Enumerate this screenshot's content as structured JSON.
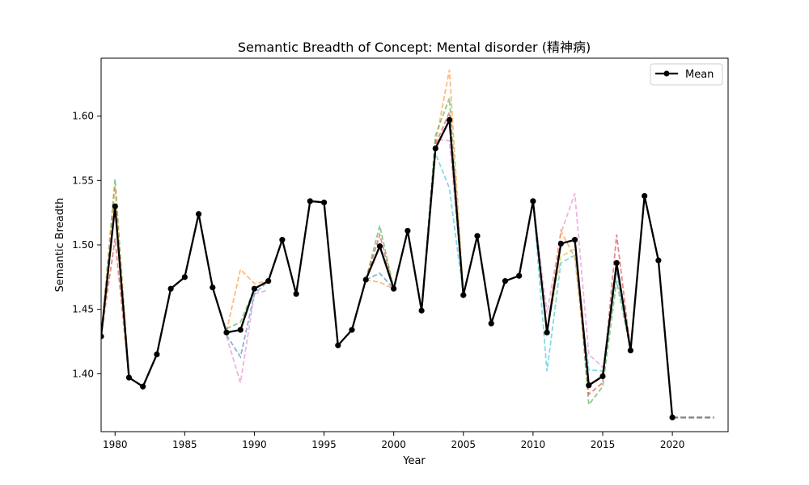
{
  "chart_data": {
    "type": "line",
    "title": "Semantic Breadth of Concept: Mental disorder (精神病)",
    "xlabel": "Year",
    "ylabel": "Semantic Breadth",
    "xlim": [
      1979,
      2024
    ],
    "ylim": [
      1.355,
      1.645
    ],
    "xticks": [
      1980,
      1985,
      1990,
      1995,
      2000,
      2005,
      2010,
      2015,
      2020
    ],
    "yticks": [
      1.4,
      1.45,
      1.5,
      1.55,
      1.6
    ],
    "legend": {
      "position": "top-right",
      "entries": [
        "Mean"
      ]
    },
    "grid": false,
    "series": [
      {
        "name": "Mean",
        "color": "#000000",
        "style": "solid-with-markers",
        "x": [
          1979,
          1980,
          1981,
          1982,
          1983,
          1984,
          1985,
          1986,
          1987,
          1988,
          1989,
          1990,
          1991,
          1992,
          1993,
          1994,
          1995,
          1996,
          1997,
          1998,
          1999,
          2000,
          2001,
          2002,
          2003,
          2004,
          2005,
          2006,
          2007,
          2008,
          2009,
          2010,
          2011,
          2012,
          2013,
          2014,
          2015,
          2016,
          2017,
          2018,
          2019,
          2020
        ],
        "y": [
          1.429,
          1.53,
          1.397,
          1.39,
          1.415,
          1.466,
          1.475,
          1.524,
          1.467,
          1.432,
          1.434,
          1.466,
          1.472,
          1.504,
          1.462,
          1.534,
          1.533,
          1.422,
          1.434,
          1.473,
          1.499,
          1.466,
          1.511,
          1.449,
          1.575,
          1.597,
          1.461,
          1.507,
          1.439,
          1.472,
          1.476,
          1.534,
          1.432,
          1.501,
          1.504,
          1.391,
          1.398,
          1.486,
          1.418,
          1.538,
          1.488,
          1.366
        ]
      },
      {
        "color": "#7f7f7f",
        "style": "dashed-extension",
        "x": [
          2020,
          2023
        ],
        "y": [
          1.366,
          1.366
        ]
      },
      {
        "color": "#2ca02c",
        "style": "dashed-faint",
        "x": [
          1979,
          1980,
          1981
        ],
        "y": [
          1.429,
          1.551,
          1.397
        ]
      },
      {
        "color": "#ff7f0e",
        "style": "dashed-faint",
        "x": [
          1979,
          1980,
          1981
        ],
        "y": [
          1.429,
          1.545,
          1.397
        ]
      },
      {
        "color": "#d62728",
        "style": "dashed-faint",
        "x": [
          1979,
          1980,
          1981
        ],
        "y": [
          1.429,
          1.505,
          1.397
        ]
      },
      {
        "color": "#ff7f0e",
        "style": "dashed-faint",
        "x": [
          1988,
          1989,
          1990,
          1991
        ],
        "y": [
          1.433,
          1.481,
          1.47,
          1.472
        ]
      },
      {
        "color": "#1f77b4",
        "style": "dashed-faint",
        "x": [
          1988,
          1989,
          1990,
          1991
        ],
        "y": [
          1.43,
          1.413,
          1.462,
          1.472
        ]
      },
      {
        "color": "#e377c2",
        "style": "dashed-faint",
        "x": [
          1988,
          1989,
          1990,
          1991
        ],
        "y": [
          1.429,
          1.393,
          1.462,
          1.465
        ]
      },
      {
        "color": "#2ca02c",
        "style": "dashed-faint",
        "x": [
          1988,
          1989,
          1990
        ],
        "y": [
          1.435,
          1.44,
          1.466
        ]
      },
      {
        "color": "#2ca02c",
        "style": "dashed-faint",
        "x": [
          1998,
          1999,
          2000
        ],
        "y": [
          1.473,
          1.515,
          1.466
        ]
      },
      {
        "color": "#d62728",
        "style": "dashed-faint",
        "x": [
          1998,
          1999,
          2000
        ],
        "y": [
          1.473,
          1.508,
          1.466
        ]
      },
      {
        "color": "#ff7f0e",
        "style": "dashed-faint",
        "x": [
          1998,
          1999,
          2000
        ],
        "y": [
          1.473,
          1.471,
          1.466
        ]
      },
      {
        "color": "#1f77b4",
        "style": "dashed-faint",
        "x": [
          1998,
          1999,
          2000
        ],
        "y": [
          1.473,
          1.478,
          1.466
        ]
      },
      {
        "color": "#ff7f0e",
        "style": "dashed-faint",
        "x": [
          2002,
          2003,
          2004,
          2005
        ],
        "y": [
          1.449,
          1.579,
          1.636,
          1.461
        ]
      },
      {
        "color": "#17becf",
        "style": "dashed-faint",
        "x": [
          2002,
          2003,
          2004,
          2005
        ],
        "y": [
          1.449,
          1.571,
          1.544,
          1.461
        ]
      },
      {
        "color": "#e377c2",
        "style": "dashed-faint",
        "x": [
          2002,
          2003,
          2004,
          2005
        ],
        "y": [
          1.449,
          1.582,
          1.581,
          1.461
        ]
      },
      {
        "color": "#2ca02c",
        "style": "dashed-faint",
        "x": [
          2002,
          2003,
          2004,
          2005
        ],
        "y": [
          1.449,
          1.585,
          1.614,
          1.461
        ]
      },
      {
        "color": "#d62728",
        "style": "dashed-faint",
        "x": [
          2002,
          2003,
          2004,
          2005
        ],
        "y": [
          1.449,
          1.578,
          1.603,
          1.461
        ]
      },
      {
        "color": "#17becf",
        "style": "dashed-faint",
        "x": [
          2010,
          2011,
          2012,
          2013,
          2014,
          2015
        ],
        "y": [
          1.534,
          1.402,
          1.486,
          1.492,
          1.403,
          1.402
        ]
      },
      {
        "color": "#e377c2",
        "style": "dashed-faint",
        "x": [
          2010,
          2011,
          2012,
          2013,
          2014,
          2015
        ],
        "y": [
          1.534,
          1.447,
          1.509,
          1.54,
          1.415,
          1.405
        ]
      },
      {
        "color": "#2ca02c",
        "style": "dashed-faint",
        "x": [
          2013,
          2014,
          2015,
          2016,
          2017
        ],
        "y": [
          1.504,
          1.376,
          1.39,
          1.472,
          1.418
        ]
      },
      {
        "color": "#d62728",
        "style": "dashed-faint",
        "x": [
          2013,
          2014,
          2015,
          2016,
          2017
        ],
        "y": [
          1.504,
          1.384,
          1.393,
          1.508,
          1.418
        ]
      },
      {
        "color": "#ff7f0e",
        "style": "dashed-faint",
        "x": [
          2011,
          2012,
          2013,
          2014
        ],
        "y": [
          1.432,
          1.511,
          1.49,
          1.39
        ]
      },
      {
        "color": "#bcbd22",
        "style": "dashed-faint",
        "x": [
          2011,
          2012,
          2013
        ],
        "y": [
          1.432,
          1.491,
          1.497
        ]
      },
      {
        "color": "#1f77b4",
        "style": "dashed-faint",
        "x": [
          2015,
          2016,
          2017
        ],
        "y": [
          1.398,
          1.48,
          1.418
        ]
      }
    ]
  }
}
